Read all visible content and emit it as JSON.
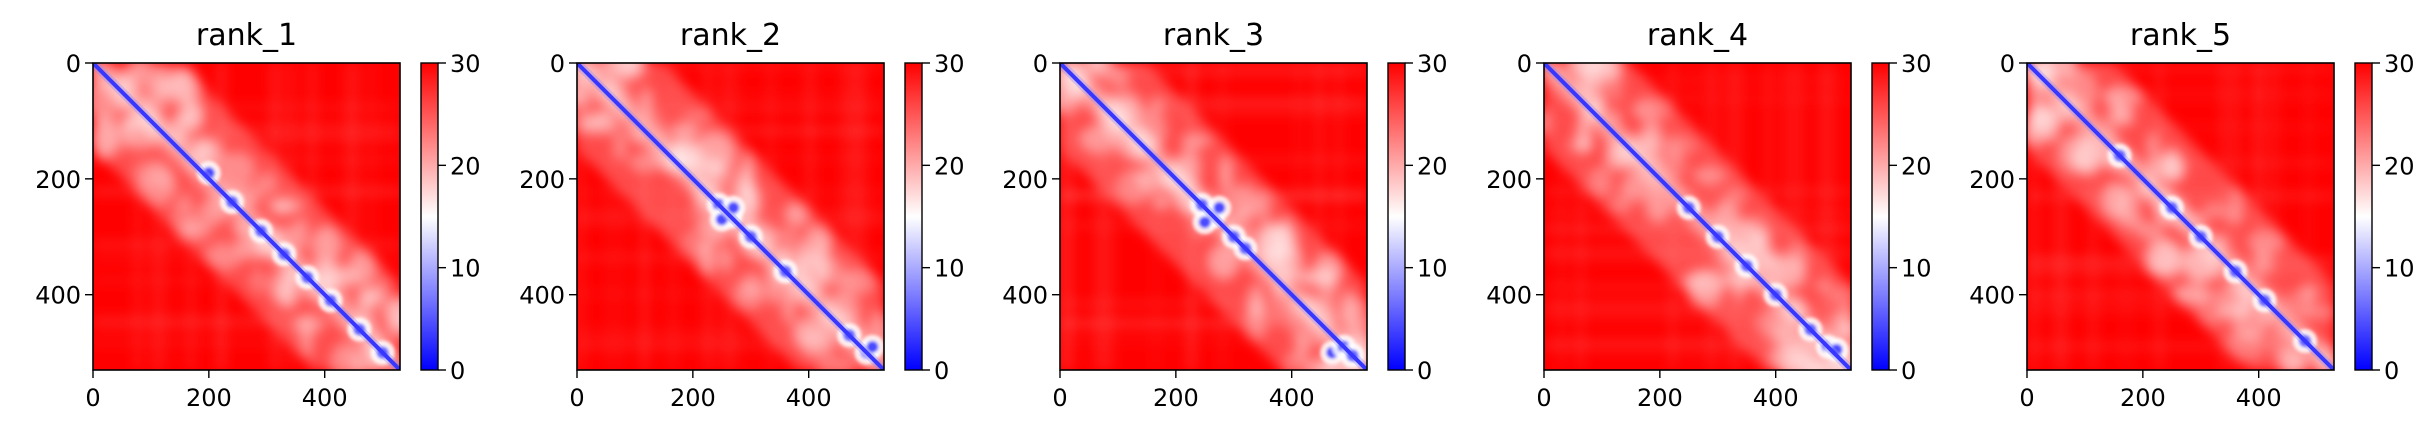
{
  "chart_data": [
    {
      "type": "heatmap",
      "title": "rank_1",
      "x_ticks": [
        "0",
        "200",
        "400"
      ],
      "y_ticks": [
        "0",
        "200",
        "400"
      ],
      "x_range": [
        0,
        530
      ],
      "y_range": [
        0,
        530
      ],
      "y_inverted": true,
      "colorbar": {
        "ticks": [
          "0",
          "10",
          "20",
          "30"
        ],
        "range": [
          0,
          30
        ],
        "colormap": "bwr",
        "colors": [
          "#0000ff",
          "#ffffff",
          "#ff0000"
        ]
      },
      "blobs": [
        [
          200,
          190
        ],
        [
          240,
          240
        ],
        [
          290,
          290
        ],
        [
          330,
          330
        ],
        [
          370,
          370
        ],
        [
          410,
          410
        ],
        [
          460,
          460
        ],
        [
          500,
          500
        ]
      ],
      "background_intensity": 0.85
    },
    {
      "type": "heatmap",
      "title": "rank_2",
      "x_ticks": [
        "0",
        "200",
        "400"
      ],
      "y_ticks": [
        "0",
        "200",
        "400"
      ],
      "x_range": [
        0,
        530
      ],
      "y_range": [
        0,
        530
      ],
      "y_inverted": true,
      "colorbar": {
        "ticks": [
          "0",
          "10",
          "20",
          "30"
        ],
        "range": [
          0,
          30
        ],
        "colormap": "bwr",
        "colors": [
          "#0000ff",
          "#ffffff",
          "#ff0000"
        ]
      },
      "blobs": [
        [
          245,
          245
        ],
        [
          265,
          265
        ],
        [
          250,
          270
        ],
        [
          270,
          250
        ],
        [
          300,
          300
        ],
        [
          360,
          360
        ],
        [
          470,
          470
        ],
        [
          500,
          500
        ],
        [
          510,
          490
        ]
      ],
      "background_intensity": 0.9
    },
    {
      "type": "heatmap",
      "title": "rank_3",
      "x_ticks": [
        "0",
        "200",
        "400"
      ],
      "y_ticks": [
        "0",
        "200",
        "400"
      ],
      "x_range": [
        0,
        530
      ],
      "y_range": [
        0,
        530
      ],
      "y_inverted": true,
      "colorbar": {
        "ticks": [
          "0",
          "10",
          "20",
          "30"
        ],
        "range": [
          0,
          30
        ],
        "colormap": "bwr",
        "colors": [
          "#0000ff",
          "#ffffff",
          "#ff0000"
        ]
      },
      "blobs": [
        [
          245,
          245
        ],
        [
          265,
          265
        ],
        [
          250,
          275
        ],
        [
          275,
          250
        ],
        [
          300,
          300
        ],
        [
          320,
          320
        ],
        [
          470,
          500
        ],
        [
          490,
          490
        ],
        [
          505,
          505
        ]
      ],
      "background_intensity": 0.9
    },
    {
      "type": "heatmap",
      "title": "rank_4",
      "x_ticks": [
        "0",
        "200",
        "400"
      ],
      "y_ticks": [
        "0",
        "200",
        "400"
      ],
      "x_range": [
        0,
        530
      ],
      "y_range": [
        0,
        530
      ],
      "y_inverted": true,
      "colorbar": {
        "ticks": [
          "0",
          "10",
          "20",
          "30"
        ],
        "range": [
          0,
          30
        ],
        "colormap": "bwr",
        "colors": [
          "#0000ff",
          "#ffffff",
          "#ff0000"
        ]
      },
      "blobs": [
        [
          250,
          250
        ],
        [
          300,
          300
        ],
        [
          350,
          350
        ],
        [
          400,
          400
        ],
        [
          460,
          460
        ],
        [
          490,
          490
        ],
        [
          505,
          495
        ]
      ],
      "background_intensity": 0.88
    },
    {
      "type": "heatmap",
      "title": "rank_5",
      "x_ticks": [
        "0",
        "200",
        "400"
      ],
      "y_ticks": [
        "0",
        "200",
        "400"
      ],
      "x_range": [
        0,
        530
      ],
      "y_range": [
        0,
        530
      ],
      "y_inverted": true,
      "colorbar": {
        "ticks": [
          "0",
          "10",
          "20",
          "30"
        ],
        "range": [
          0,
          30
        ],
        "colormap": "bwr",
        "colors": [
          "#0000ff",
          "#ffffff",
          "#ff0000"
        ]
      },
      "blobs": [
        [
          160,
          160
        ],
        [
          250,
          250
        ],
        [
          300,
          300
        ],
        [
          360,
          360
        ],
        [
          410,
          410
        ],
        [
          480,
          480
        ]
      ],
      "background_intensity": 0.88
    }
  ]
}
